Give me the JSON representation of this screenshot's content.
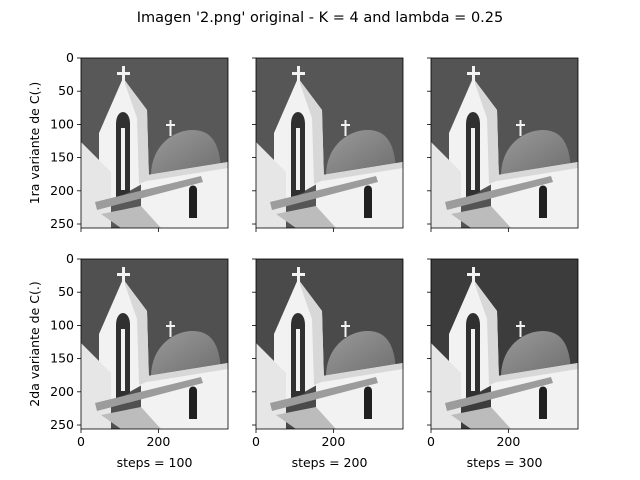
{
  "figure": {
    "title": "Imagen '2.png' original - K = 4 and lambda = 0.25"
  },
  "rows": [
    {
      "ylabel": "1ra variante de C(.)"
    },
    {
      "ylabel": "2da variante de C(.)"
    }
  ],
  "columns": [
    {
      "xlabel": "steps = 100"
    },
    {
      "xlabel": "steps = 200"
    },
    {
      "xlabel": "steps = 300"
    }
  ],
  "axes": {
    "x_ticks": [
      0,
      200
    ],
    "y_ticks": [
      0,
      50,
      100,
      150,
      200,
      250
    ],
    "x_range": [
      0,
      380
    ],
    "y_range": [
      0,
      256
    ]
  },
  "panels": [
    {
      "row": 0,
      "col": 0,
      "sky_shade": "#585858"
    },
    {
      "row": 0,
      "col": 1,
      "sky_shade": "#565656"
    },
    {
      "row": 0,
      "col": 2,
      "sky_shade": "#545454"
    },
    {
      "row": 1,
      "col": 0,
      "sky_shade": "#505050"
    },
    {
      "row": 1,
      "col": 1,
      "sky_shade": "#4a4a4a"
    },
    {
      "row": 1,
      "col": 2,
      "sky_shade": "#3c3c3c"
    }
  ],
  "colors": {
    "wall_light": "#f2f2f2",
    "wall_shade": "#d8d8d8",
    "dome": "#8a8a8a",
    "dark_opening": "#202020"
  }
}
